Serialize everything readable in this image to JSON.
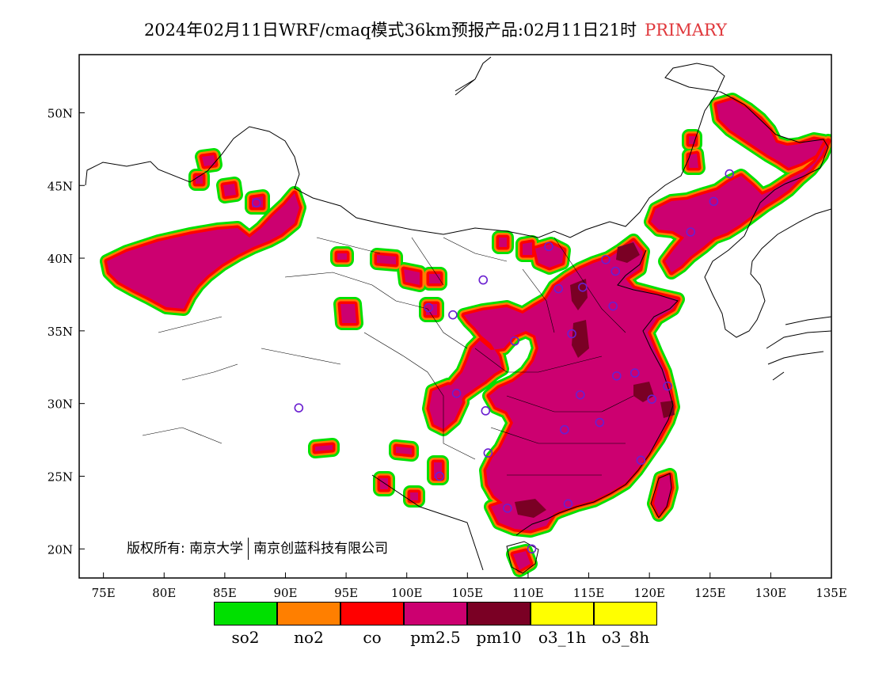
{
  "title": {
    "text": "2024年02月11日WRF/cmaq模式36km预报产品:02月11日21时",
    "tag": "PRIMARY",
    "tag_color": "#e0383c"
  },
  "axes": {
    "x_ticks": [
      "75E",
      "80E",
      "85E",
      "90E",
      "95E",
      "100E",
      "105E",
      "110E",
      "115E",
      "120E",
      "125E",
      "130E",
      "135E"
    ],
    "x_values": [
      75,
      80,
      85,
      90,
      95,
      100,
      105,
      110,
      115,
      120,
      125,
      130,
      135
    ],
    "y_ticks": [
      "20N",
      "25N",
      "30N",
      "35N",
      "40N",
      "45N",
      "50N"
    ],
    "y_values": [
      20,
      25,
      30,
      35,
      40,
      45,
      50
    ],
    "lon_range": [
      73,
      135
    ],
    "lat_range": [
      18,
      54
    ]
  },
  "legend": {
    "items": [
      {
        "label": "so2",
        "color": "#00e000"
      },
      {
        "label": "no2",
        "color": "#ff7f00"
      },
      {
        "label": "co",
        "color": "#ff0000"
      },
      {
        "label": "pm2.5",
        "color": "#cc0070"
      },
      {
        "label": "pm10",
        "color": "#7a0024"
      },
      {
        "label": "o3_1h",
        "color": "#ffff00"
      },
      {
        "label": "o3_8h",
        "color": "#ffff00"
      }
    ]
  },
  "copyright": {
    "left": "版权所有: 南京大学",
    "right": "南京创蓝科技有限公司"
  },
  "colors": {
    "pm25": "#cc0070",
    "pm10": "#7a0024",
    "border_green": "#00e000",
    "border_orange": "#ff7f00",
    "border_red": "#ff0000",
    "station": "#6a1fd0"
  }
}
